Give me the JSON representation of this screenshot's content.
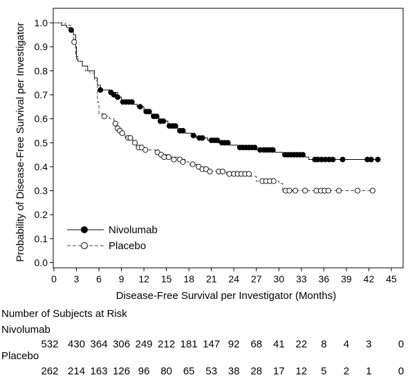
{
  "chart_data": {
    "type": "line",
    "subtype": "kaplan-meier",
    "title": "",
    "xlabel": "Disease-Free Survival per Investigator (Months)",
    "ylabel": "Probability of Disease-Free Survival per Investigator",
    "xlim": [
      0,
      45
    ],
    "ylim": [
      0,
      1.05
    ],
    "x_ticks": [
      "0",
      "3",
      "6",
      "9",
      "12",
      "15",
      "18",
      "21",
      "24",
      "27",
      "30",
      "33",
      "36",
      "39",
      "42",
      "45"
    ],
    "y_ticks": [
      "0.0",
      "0.1",
      "0.2",
      "0.3",
      "0.4",
      "0.5",
      "0.6",
      "0.7",
      "0.8",
      "0.9",
      "1.0"
    ],
    "legend_position": "bottom-left",
    "series": [
      {
        "name": "Nivolumab",
        "color": "#000000",
        "line_style": "solid",
        "marker": "filled-circle",
        "steps": [
          [
            0,
            1.0
          ],
          [
            1.0,
            0.99
          ],
          [
            1.7,
            0.98
          ],
          [
            2.2,
            0.97
          ],
          [
            2.6,
            0.95
          ],
          [
            2.9,
            0.9
          ],
          [
            3.0,
            0.85
          ],
          [
            3.2,
            0.84
          ],
          [
            3.8,
            0.82
          ],
          [
            4.5,
            0.8
          ],
          [
            5.4,
            0.77
          ],
          [
            5.8,
            0.74
          ],
          [
            6.2,
            0.72
          ],
          [
            7.6,
            0.71
          ],
          [
            8.5,
            0.69
          ],
          [
            9.0,
            0.67
          ],
          [
            10.5,
            0.66
          ],
          [
            11.1,
            0.65
          ],
          [
            12.0,
            0.63
          ],
          [
            13.0,
            0.61
          ],
          [
            14.0,
            0.59
          ],
          [
            15.2,
            0.57
          ],
          [
            16.5,
            0.55
          ],
          [
            17.5,
            0.54
          ],
          [
            18.4,
            0.53
          ],
          [
            19.0,
            0.52
          ],
          [
            20.5,
            0.51
          ],
          [
            22.0,
            0.5
          ],
          [
            23.5,
            0.49
          ],
          [
            24.5,
            0.48
          ],
          [
            27.0,
            0.47
          ],
          [
            29.5,
            0.46
          ],
          [
            30.5,
            0.45
          ],
          [
            33.5,
            0.44
          ],
          [
            34.0,
            0.43
          ],
          [
            43.5,
            0.43
          ]
        ],
        "censored": [
          [
            2.3,
            0.97
          ],
          [
            6.2,
            0.72
          ],
          [
            7.6,
            0.71
          ],
          [
            8.0,
            0.7
          ],
          [
            8.5,
            0.69
          ],
          [
            9.2,
            0.67
          ],
          [
            9.6,
            0.67
          ],
          [
            10.0,
            0.67
          ],
          [
            10.4,
            0.67
          ],
          [
            11.5,
            0.65
          ],
          [
            12.3,
            0.63
          ],
          [
            12.7,
            0.63
          ],
          [
            13.3,
            0.61
          ],
          [
            13.7,
            0.61
          ],
          [
            14.2,
            0.59
          ],
          [
            14.6,
            0.59
          ],
          [
            15.4,
            0.57
          ],
          [
            15.8,
            0.57
          ],
          [
            16.2,
            0.57
          ],
          [
            16.8,
            0.55
          ],
          [
            17.2,
            0.55
          ],
          [
            18.6,
            0.53
          ],
          [
            19.4,
            0.52
          ],
          [
            19.8,
            0.52
          ],
          [
            21.0,
            0.51
          ],
          [
            21.4,
            0.51
          ],
          [
            21.8,
            0.51
          ],
          [
            22.4,
            0.5
          ],
          [
            22.8,
            0.5
          ],
          [
            23.2,
            0.5
          ],
          [
            24.8,
            0.48
          ],
          [
            25.2,
            0.48
          ],
          [
            25.6,
            0.48
          ],
          [
            26.0,
            0.48
          ],
          [
            26.4,
            0.48
          ],
          [
            26.8,
            0.48
          ],
          [
            27.5,
            0.47
          ],
          [
            28.0,
            0.47
          ],
          [
            28.4,
            0.47
          ],
          [
            28.8,
            0.47
          ],
          [
            29.2,
            0.47
          ],
          [
            30.8,
            0.45
          ],
          [
            31.2,
            0.45
          ],
          [
            31.6,
            0.45
          ],
          [
            32.0,
            0.45
          ],
          [
            32.4,
            0.45
          ],
          [
            32.8,
            0.45
          ],
          [
            33.2,
            0.45
          ],
          [
            34.8,
            0.43
          ],
          [
            35.2,
            0.43
          ],
          [
            35.7,
            0.43
          ],
          [
            36.2,
            0.43
          ],
          [
            36.7,
            0.43
          ],
          [
            37.2,
            0.43
          ],
          [
            38.5,
            0.43
          ],
          [
            41.8,
            0.43
          ],
          [
            42.3,
            0.43
          ],
          [
            43.2,
            0.43
          ]
        ]
      },
      {
        "name": "Placebo",
        "color": "#444444",
        "line_style": "dashed",
        "marker": "open-circle",
        "steps": [
          [
            0,
            1.0
          ],
          [
            1.5,
            0.99
          ],
          [
            2.2,
            0.97
          ],
          [
            2.6,
            0.92
          ],
          [
            2.9,
            0.86
          ],
          [
            3.2,
            0.84
          ],
          [
            3.8,
            0.82
          ],
          [
            4.2,
            0.8
          ],
          [
            4.8,
            0.79
          ],
          [
            5.4,
            0.76
          ],
          [
            5.8,
            0.67
          ],
          [
            6.0,
            0.62
          ],
          [
            6.8,
            0.61
          ],
          [
            7.4,
            0.6
          ],
          [
            8.0,
            0.58
          ],
          [
            8.4,
            0.55
          ],
          [
            8.9,
            0.54
          ],
          [
            9.5,
            0.52
          ],
          [
            10.5,
            0.5
          ],
          [
            11.0,
            0.48
          ],
          [
            12.0,
            0.47
          ],
          [
            13.5,
            0.46
          ],
          [
            14.0,
            0.45
          ],
          [
            15.0,
            0.44
          ],
          [
            16.5,
            0.43
          ],
          [
            17.5,
            0.42
          ],
          [
            18.0,
            0.41
          ],
          [
            19.0,
            0.4
          ],
          [
            20.0,
            0.39
          ],
          [
            21.0,
            0.38
          ],
          [
            23.0,
            0.37
          ],
          [
            26.0,
            0.36
          ],
          [
            27.0,
            0.34
          ],
          [
            30.0,
            0.33
          ],
          [
            30.5,
            0.3
          ],
          [
            42.5,
            0.3
          ]
        ],
        "censored": [
          [
            2.7,
            0.92
          ],
          [
            6.7,
            0.61
          ],
          [
            8.2,
            0.58
          ],
          [
            8.5,
            0.56
          ],
          [
            8.8,
            0.55
          ],
          [
            9.1,
            0.54
          ],
          [
            9.9,
            0.52
          ],
          [
            10.2,
            0.52
          ],
          [
            10.8,
            0.5
          ],
          [
            11.3,
            0.48
          ],
          [
            11.7,
            0.48
          ],
          [
            12.2,
            0.47
          ],
          [
            13.8,
            0.46
          ],
          [
            14.3,
            0.45
          ],
          [
            14.7,
            0.44
          ],
          [
            15.3,
            0.44
          ],
          [
            16.0,
            0.43
          ],
          [
            16.8,
            0.43
          ],
          [
            17.2,
            0.42
          ],
          [
            18.5,
            0.41
          ],
          [
            19.3,
            0.4
          ],
          [
            19.8,
            0.39
          ],
          [
            20.3,
            0.39
          ],
          [
            20.8,
            0.38
          ],
          [
            22.0,
            0.38
          ],
          [
            22.5,
            0.38
          ],
          [
            23.4,
            0.37
          ],
          [
            24.0,
            0.37
          ],
          [
            24.5,
            0.37
          ],
          [
            25.0,
            0.37
          ],
          [
            25.5,
            0.37
          ],
          [
            26.0,
            0.37
          ],
          [
            27.8,
            0.34
          ],
          [
            28.3,
            0.34
          ],
          [
            28.8,
            0.34
          ],
          [
            29.3,
            0.34
          ],
          [
            30.9,
            0.3
          ],
          [
            31.4,
            0.3
          ],
          [
            32.2,
            0.3
          ],
          [
            33.5,
            0.3
          ],
          [
            35.0,
            0.3
          ],
          [
            35.6,
            0.3
          ],
          [
            36.1,
            0.3
          ],
          [
            36.6,
            0.3
          ],
          [
            38.0,
            0.3
          ],
          [
            40.5,
            0.3
          ],
          [
            42.5,
            0.3
          ]
        ]
      }
    ]
  },
  "risk_table": {
    "heading": "Number of Subjects at Risk",
    "rows": [
      {
        "label": "Nivolumab",
        "values": [
          "532",
          "430",
          "364",
          "306",
          "249",
          "212",
          "181",
          "147",
          "92",
          "68",
          "41",
          "22",
          "8",
          "4",
          "3",
          "0"
        ]
      },
      {
        "label": "Placebo",
        "values": [
          "262",
          "214",
          "163",
          "126",
          "96",
          "80",
          "65",
          "53",
          "38",
          "28",
          "17",
          "12",
          "5",
          "2",
          "1",
          "0"
        ]
      }
    ]
  }
}
